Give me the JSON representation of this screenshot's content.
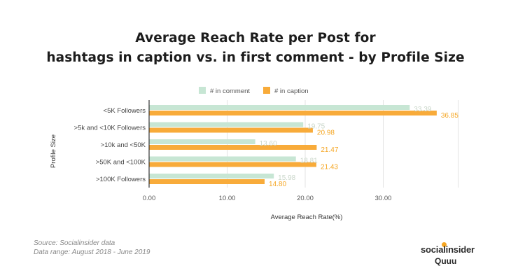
{
  "header": {
    "title_line1": "Average Reach Rate per Post for",
    "title_line2": "hashtags in caption vs. in first comment - by Profile Size"
  },
  "chart_data": {
    "type": "bar",
    "orientation": "horizontal",
    "categories": [
      "<5K Followers",
      ">5k and <10K Followers",
      ">10k and <50K",
      ">50K and <100K",
      ">100K Followers"
    ],
    "series": [
      {
        "name": "# in comment",
        "color": "#c7e6d4",
        "label_color": "#c9d6c9",
        "values": [
          33.39,
          19.75,
          13.6,
          18.81,
          15.98
        ]
      },
      {
        "name": "# in caption",
        "color": "#f8ab3a",
        "label_color": "#f5a623",
        "values": [
          36.85,
          20.98,
          21.47,
          21.43,
          14.8
        ]
      }
    ],
    "xlabel": "Average Reach Rate(%)",
    "ylabel": "Profile Size",
    "xlim": [
      0,
      40
    ],
    "xticks": [
      "0.00",
      "10.00",
      "20.00",
      "30.00"
    ],
    "tick_values": [
      0,
      10,
      20,
      30
    ],
    "legend_position": "top"
  },
  "footer": {
    "source_line1": "Source: Socialinsider data",
    "source_line2": "Data range: August 2018 - June 2019",
    "brand_line1": "socialinsider",
    "brand_line2": "Quuu",
    "brand_dot_color": "#f5a623"
  }
}
